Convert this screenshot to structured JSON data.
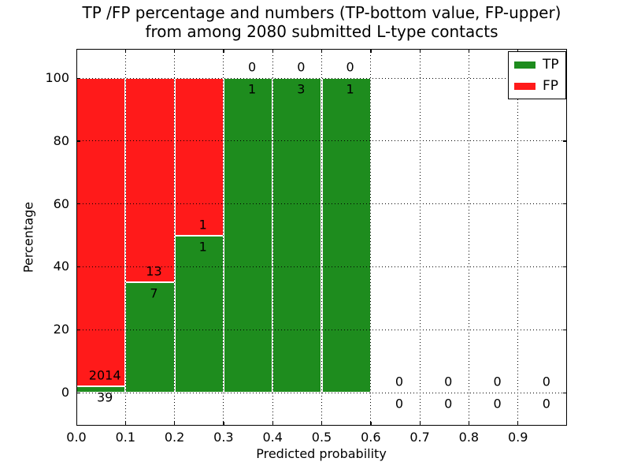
{
  "figure": {
    "title_line1": "TP /FP percentage and numbers (TP-bottom value, FP-upper)",
    "title_line2": "from among 2080 submitted L-type contacts"
  },
  "chart_data": {
    "type": "bar",
    "stacked": true,
    "title": "TP /FP percentage and numbers (TP-bottom value, FP-upper) from among 2080 submitted L-type contacts",
    "xlabel": "Predicted probability",
    "ylabel": "Percentage",
    "xlim": [
      0.0,
      1.0
    ],
    "ylim": [
      -10.5,
      109.5
    ],
    "x_ticks": [
      "0.0",
      "0.1",
      "0.2",
      "0.3",
      "0.4",
      "0.5",
      "0.6",
      "0.7",
      "0.8",
      "0.9"
    ],
    "y_ticks": [
      "0",
      "20",
      "40",
      "60",
      "80",
      "100"
    ],
    "grid": "dotted black, drawn above bars",
    "legend_position": "upper right",
    "bar_edge_color": "#ffffff",
    "series": [
      {
        "name": "TP",
        "color": "#1e8c1e"
      },
      {
        "name": "FP",
        "color": "#ff1a1a"
      }
    ],
    "bins": [
      {
        "x_start": 0.0,
        "x_end": 0.1,
        "tp_count": 39,
        "fp_count": 2014,
        "tp_pct": 1.9,
        "fp_pct": 98.1
      },
      {
        "x_start": 0.1,
        "x_end": 0.2,
        "tp_count": 7,
        "fp_count": 13,
        "tp_pct": 35,
        "fp_pct": 65
      },
      {
        "x_start": 0.2,
        "x_end": 0.3,
        "tp_count": 1,
        "fp_count": 1,
        "tp_pct": 50,
        "fp_pct": 50
      },
      {
        "x_start": 0.3,
        "x_end": 0.4,
        "tp_count": 1,
        "fp_count": 0,
        "tp_pct": 100,
        "fp_pct": 0
      },
      {
        "x_start": 0.4,
        "x_end": 0.5,
        "tp_count": 3,
        "fp_count": 0,
        "tp_pct": 100,
        "fp_pct": 0
      },
      {
        "x_start": 0.5,
        "x_end": 0.6,
        "tp_count": 1,
        "fp_count": 0,
        "tp_pct": 100,
        "fp_pct": 0
      },
      {
        "x_start": 0.6,
        "x_end": 0.7,
        "tp_count": 0,
        "fp_count": 0,
        "tp_pct": 0,
        "fp_pct": 0
      },
      {
        "x_start": 0.7,
        "x_end": 0.8,
        "tp_count": 0,
        "fp_count": 0,
        "tp_pct": 0,
        "fp_pct": 0
      },
      {
        "x_start": 0.8,
        "x_end": 0.9,
        "tp_count": 0,
        "fp_count": 0,
        "tp_pct": 0,
        "fp_pct": 0
      },
      {
        "x_start": 0.9,
        "x_end": 1.0,
        "tp_count": 0,
        "fp_count": 0,
        "tp_pct": 0,
        "fp_pct": 0
      }
    ]
  }
}
